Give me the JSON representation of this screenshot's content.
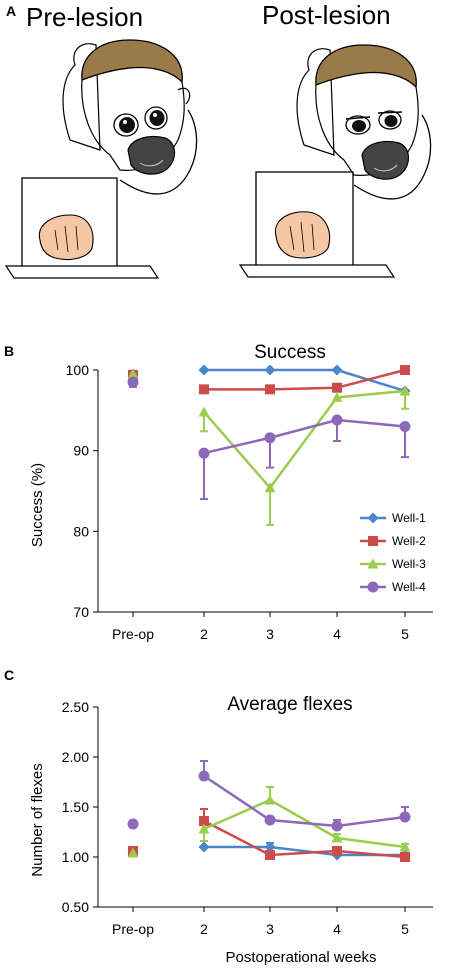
{
  "panel_a": {
    "letter": "A",
    "left_title": "Pre-lesion",
    "right_title": "Post-lesion"
  },
  "chart_data": [
    {
      "type": "line",
      "panel": "B",
      "title": "Success",
      "ylabel": "Success (%)",
      "xlabel": "",
      "categories": [
        "Pre-op",
        "2",
        "3",
        "4",
        "5"
      ],
      "ylim": [
        70,
        100
      ],
      "yticks": [
        70,
        80,
        90,
        100
      ],
      "ytick_labels": [
        "70",
        "80",
        "90",
        "100"
      ],
      "legend": "right-middle",
      "grid": false,
      "series": [
        {
          "name": "Well-1",
          "color": "#4a86c8",
          "marker": "diamond",
          "values": [
            99.5,
            100,
            100,
            100,
            97.4
          ],
          "err_up": [
            0,
            0,
            0,
            0,
            0
          ],
          "err_down": [
            0,
            0,
            0,
            0,
            0
          ]
        },
        {
          "name": "Well-2",
          "color": "#cc4c4c",
          "marker": "square",
          "values": [
            99.4,
            97.6,
            97.6,
            97.8,
            100
          ],
          "err_up": [
            0,
            0,
            0,
            0,
            0
          ],
          "err_down": [
            0,
            0,
            0,
            0,
            0
          ]
        },
        {
          "name": "Well-3",
          "color": "#9ccc4e",
          "marker": "triangle",
          "values": [
            99.5,
            94.8,
            85.4,
            96.6,
            97.4
          ],
          "err_up": [
            0,
            0,
            0,
            0,
            0
          ],
          "err_down": [
            0,
            2.4,
            4.6,
            0,
            2.2
          ]
        },
        {
          "name": "Well-4",
          "color": "#8c68b8",
          "marker": "circle",
          "values": [
            98.5,
            89.7,
            91.6,
            93.8,
            93.0
          ],
          "err_up": [
            0,
            0,
            0,
            0,
            0
          ],
          "err_down": [
            0.6,
            5.7,
            3.7,
            2.6,
            3.8
          ]
        }
      ]
    },
    {
      "type": "line",
      "panel": "C",
      "title": "Average flexes",
      "ylabel": "Number of flexes",
      "xlabel": "Postoperational weeks",
      "categories": [
        "Pre-op",
        "2",
        "3",
        "4",
        "5"
      ],
      "ylim": [
        0.5,
        2.5
      ],
      "yticks": [
        0.5,
        1.0,
        1.5,
        2.0,
        2.5
      ],
      "ytick_labels": [
        "0.50",
        "1.00",
        "1.50",
        "2.00",
        "2.50"
      ],
      "legend": "none",
      "grid": false,
      "series": [
        {
          "name": "Well-1",
          "color": "#4a86c8",
          "marker": "diamond",
          "values": [
            1.05,
            1.1,
            1.1,
            1.02,
            1.02
          ],
          "err_up": [
            0,
            0,
            0.04,
            0,
            0
          ],
          "err_down": [
            0,
            0,
            0,
            0,
            0
          ]
        },
        {
          "name": "Well-2",
          "color": "#cc4c4c",
          "marker": "square",
          "values": [
            1.06,
            1.36,
            1.02,
            1.06,
            1.0
          ],
          "err_up": [
            0,
            0.12,
            0,
            0.03,
            0
          ],
          "err_down": [
            0,
            0,
            0,
            0,
            0
          ]
        },
        {
          "name": "Well-3",
          "color": "#9ccc4e",
          "marker": "triangle",
          "values": [
            1.04,
            1.28,
            1.57,
            1.19,
            1.1
          ],
          "err_up": [
            0,
            0,
            0.13,
            0.04,
            0.03
          ],
          "err_down": [
            0,
            0.12,
            0,
            0,
            0
          ]
        },
        {
          "name": "Well-4",
          "color": "#8c68b8",
          "marker": "circle",
          "values": [
            1.33,
            1.81,
            1.37,
            1.31,
            1.4
          ],
          "err_up": [
            0,
            0.15,
            0,
            0.06,
            0.1
          ],
          "err_down": [
            0,
            0,
            0,
            0,
            0
          ]
        }
      ]
    }
  ]
}
